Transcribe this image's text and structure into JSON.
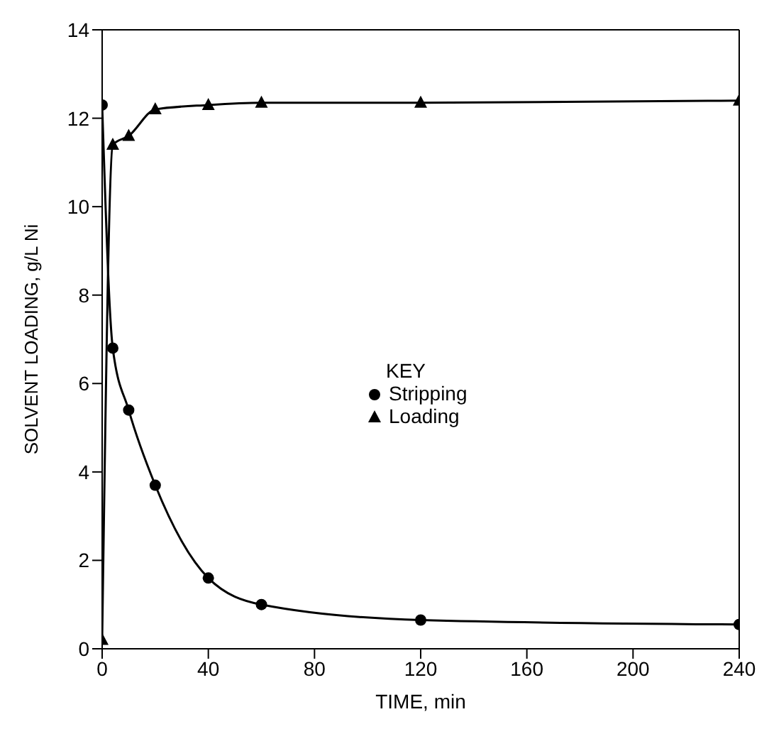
{
  "chart_data": {
    "type": "line",
    "xlabel": "TIME, min",
    "ylabel": "SOLVENT LOADING, g/L Ni",
    "legend_title": "KEY",
    "legend": "center",
    "line_style": "solid",
    "xlim": [
      0,
      240
    ],
    "xticks": [
      0,
      40,
      80,
      120,
      160,
      200,
      240
    ],
    "ylim": [
      0,
      14
    ],
    "yticks": [
      0,
      2,
      4,
      6,
      8,
      10,
      12,
      14
    ],
    "series": [
      {
        "name": "Stripping",
        "color": "#000000",
        "marker": "circle",
        "x": [
          0,
          4,
          10,
          20,
          40,
          60,
          120,
          240
        ],
        "values": [
          12.3,
          6.8,
          5.4,
          3.7,
          1.6,
          1.0,
          0.65,
          0.55
        ]
      },
      {
        "name": "Loading",
        "color": "#000000",
        "marker": "triangle",
        "x": [
          0,
          4,
          10,
          20,
          40,
          60,
          120,
          240
        ],
        "values": [
          0.2,
          11.4,
          11.6,
          12.2,
          12.3,
          12.35,
          12.35,
          12.4
        ]
      }
    ]
  }
}
